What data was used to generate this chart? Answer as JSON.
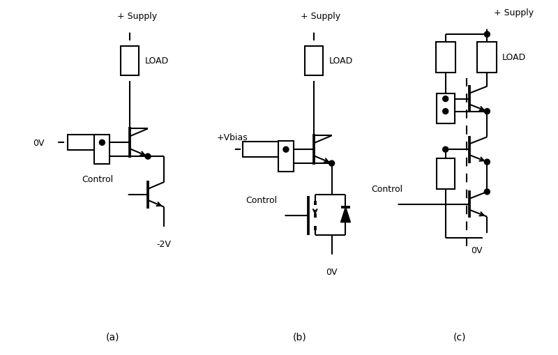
{
  "bg_color": "#ffffff",
  "lw": 1.5,
  "label_a": "(a)",
  "label_b": "(b)",
  "label_c": "(c)"
}
